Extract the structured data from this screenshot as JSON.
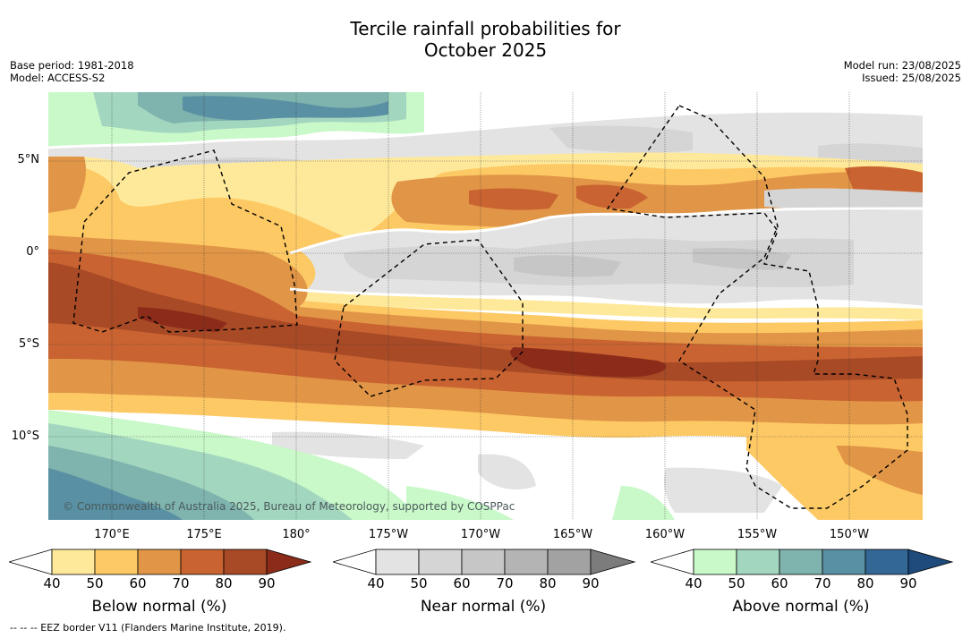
{
  "title_line1": "Tercile rainfall probabilities for",
  "title_line2": "October 2025",
  "base_period": "Base period: 1981-2018",
  "model": "Model: ACCESS-S2",
  "model_run": "Model run: 23/08/2025",
  "issued": "Issued: 25/08/2025",
  "copyright": "© Commonwealth of Australia 2025, Bureau of Meteorology, supported by COSPPac",
  "footer": "--  --  -- EEZ border V11 (Flanders Marine Institute, 2019).",
  "lat_labels": [
    "5°N",
    "0°",
    "5°S",
    "10°S"
  ],
  "lon_labels": [
    "170°E",
    "175°E",
    "180°",
    "175°W",
    "170°W",
    "165°W",
    "160°W",
    "155°W",
    "150°W"
  ],
  "colorbars": [
    {
      "title": "Below normal (%)",
      "ticks": [
        "40",
        "50",
        "60",
        "70",
        "80",
        "90"
      ],
      "colors": [
        "#ffffff",
        "#fee99a",
        "#fdc965",
        "#e19546",
        "#c96331",
        "#a84a26",
        "#8b2c1a"
      ]
    },
    {
      "title": "Near normal (%)",
      "ticks": [
        "40",
        "50",
        "60",
        "70",
        "80",
        "90"
      ],
      "colors": [
        "#ffffff",
        "#e3e3e3",
        "#d5d5d5",
        "#c6c6c6",
        "#b4b4b4",
        "#a2a2a2",
        "#7c7c7c"
      ]
    },
    {
      "title": "Above normal (%)",
      "ticks": [
        "40",
        "50",
        "60",
        "70",
        "80",
        "90"
      ],
      "colors": [
        "#ffffff",
        "#c9f8c9",
        "#a3d6bf",
        "#7eb3ae",
        "#5a90a3",
        "#336795",
        "#1e4a7c"
      ]
    }
  ],
  "map_colors": {
    "below_50": "#fee99a",
    "below_60": "#fdc965",
    "below_70": "#e19546",
    "below_80": "#c96331",
    "below_90": "#a84a26",
    "below_max": "#8b2c1a",
    "near_40": "#e3e3e3",
    "near_50": "#d5d5d5",
    "near_60": "#c6c6c6",
    "above_50": "#c9f8c9",
    "above_60": "#a3d6bf",
    "above_70": "#7eb3ae",
    "above_80": "#5a90a3",
    "above_90": "#336795"
  }
}
